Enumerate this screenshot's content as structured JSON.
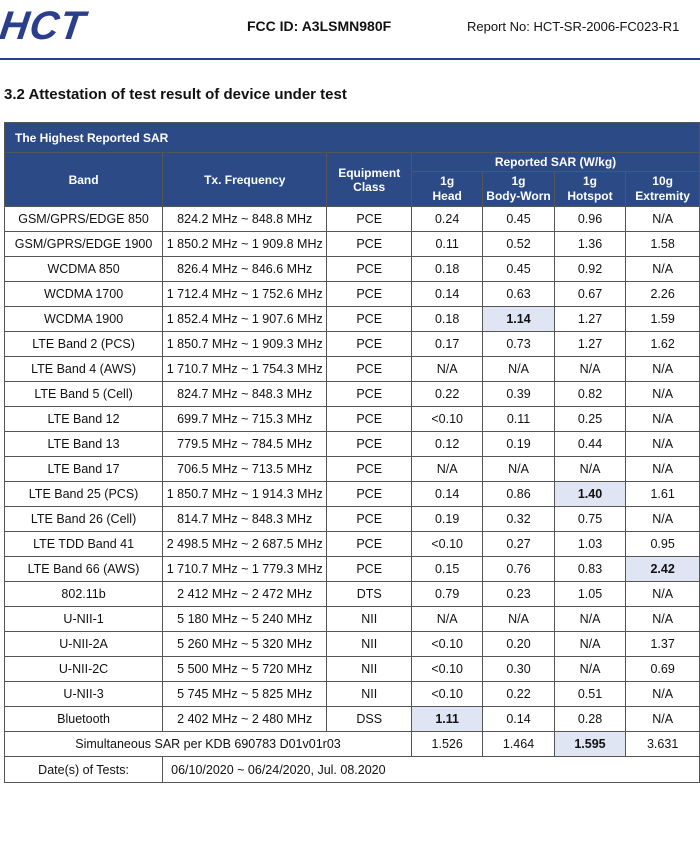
{
  "header": {
    "logo": "HCT",
    "fcc_id": "FCC ID: A3LSMN980F",
    "report_no": "Report No: HCT-SR-2006-FC023-R1"
  },
  "section_title": "3.2 Attestation of test result of device under test",
  "table": {
    "caption": "The Highest Reported SAR",
    "col_band": "Band",
    "col_freq": "Tx. Frequency",
    "col_equip": "Equipment Class",
    "col_reported": "Reported SAR (W/kg)",
    "sub_headers": [
      {
        "l1": "1g",
        "l2": "Head"
      },
      {
        "l1": "1g",
        "l2": "Body-Worn"
      },
      {
        "l1": "1g",
        "l2": "Hotspot"
      },
      {
        "l1": "10g",
        "l2": "Extremity"
      }
    ],
    "rows": [
      {
        "band": "GSM/GPRS/EDGE 850",
        "freq": "824.2 MHz ~ 848.8 MHz",
        "equip": "PCE",
        "head": "0.24",
        "body": "0.45",
        "hotspot": "0.96",
        "extremity": "N/A",
        "hl": ""
      },
      {
        "band": "GSM/GPRS/EDGE 1900",
        "freq": "1 850.2 MHz ~ 1 909.8 MHz",
        "equip": "PCE",
        "head": "0.11",
        "body": "0.52",
        "hotspot": "1.36",
        "extremity": "1.58",
        "hl": ""
      },
      {
        "band": "WCDMA 850",
        "freq": "826.4 MHz ~ 846.6 MHz",
        "equip": "PCE",
        "head": "0.18",
        "body": "0.45",
        "hotspot": "0.92",
        "extremity": "N/A",
        "hl": ""
      },
      {
        "band": "WCDMA 1700",
        "freq": "1 712.4 MHz ~ 1 752.6 MHz",
        "equip": "PCE",
        "head": "0.14",
        "body": "0.63",
        "hotspot": "0.67",
        "extremity": "2.26",
        "hl": ""
      },
      {
        "band": "WCDMA 1900",
        "freq": "1 852.4 MHz ~ 1 907.6 MHz",
        "equip": "PCE",
        "head": "0.18",
        "body": "1.14",
        "hotspot": "1.27",
        "extremity": "1.59",
        "hl": "body"
      },
      {
        "band": "LTE Band 2 (PCS)",
        "freq": "1 850.7 MHz ~ 1 909.3 MHz",
        "equip": "PCE",
        "head": "0.17",
        "body": "0.73",
        "hotspot": "1.27",
        "extremity": "1.62",
        "hl": ""
      },
      {
        "band": "LTE Band 4 (AWS)",
        "freq": "1 710.7 MHz ~ 1 754.3 MHz",
        "equip": "PCE",
        "head": "N/A",
        "body": "N/A",
        "hotspot": "N/A",
        "extremity": "N/A",
        "hl": ""
      },
      {
        "band": "LTE Band 5 (Cell)",
        "freq": "824.7 MHz ~ 848.3 MHz",
        "equip": "PCE",
        "head": "0.22",
        "body": "0.39",
        "hotspot": "0.82",
        "extremity": "N/A",
        "hl": ""
      },
      {
        "band": "LTE Band 12",
        "freq": "699.7 MHz ~ 715.3 MHz",
        "equip": "PCE",
        "head": "<0.10",
        "body": "0.11",
        "hotspot": "0.25",
        "extremity": "N/A",
        "hl": ""
      },
      {
        "band": "LTE Band 13",
        "freq": "779.5 MHz ~ 784.5 MHz",
        "equip": "PCE",
        "head": "0.12",
        "body": "0.19",
        "hotspot": "0.44",
        "extremity": "N/A",
        "hl": ""
      },
      {
        "band": "LTE Band 17",
        "freq": "706.5 MHz ~ 713.5 MHz",
        "equip": "PCE",
        "head": "N/A",
        "body": "N/A",
        "hotspot": "N/A",
        "extremity": "N/A",
        "hl": ""
      },
      {
        "band": "LTE Band 25 (PCS)",
        "freq": "1 850.7 MHz ~ 1 914.3 MHz",
        "equip": "PCE",
        "head": "0.14",
        "body": "0.86",
        "hotspot": "1.40",
        "extremity": "1.61",
        "hl": "hotspot"
      },
      {
        "band": "LTE Band 26 (Cell)",
        "freq": "814.7 MHz ~ 848.3 MHz",
        "equip": "PCE",
        "head": "0.19",
        "body": "0.32",
        "hotspot": "0.75",
        "extremity": "N/A",
        "hl": ""
      },
      {
        "band": "LTE TDD Band 41",
        "freq": "2 498.5 MHz ~ 2 687.5 MHz",
        "equip": "PCE",
        "head": "<0.10",
        "body": "0.27",
        "hotspot": "1.03",
        "extremity": "0.95",
        "hl": ""
      },
      {
        "band": "LTE Band 66 (AWS)",
        "freq": "1 710.7 MHz ~ 1 779.3 MHz",
        "equip": "PCE",
        "head": "0.15",
        "body": "0.76",
        "hotspot": "0.83",
        "extremity": "2.42",
        "hl": "extremity"
      },
      {
        "band": "802.11b",
        "freq": "2 412 MHz ~ 2 472 MHz",
        "equip": "DTS",
        "head": "0.79",
        "body": "0.23",
        "hotspot": "1.05",
        "extremity": "N/A",
        "hl": ""
      },
      {
        "band": "U-NII-1",
        "freq": "5 180 MHz ~ 5 240 MHz",
        "equip": "NII",
        "head": "N/A",
        "body": "N/A",
        "hotspot": "N/A",
        "extremity": "N/A",
        "hl": ""
      },
      {
        "band": "U-NII-2A",
        "freq": "5 260 MHz ~ 5 320 MHz",
        "equip": "NII",
        "head": "<0.10",
        "body": "0.20",
        "hotspot": "N/A",
        "extremity": "1.37",
        "hl": ""
      },
      {
        "band": "U-NII-2C",
        "freq": "5 500 MHz ~ 5 720 MHz",
        "equip": "NII",
        "head": "<0.10",
        "body": "0.30",
        "hotspot": "N/A",
        "extremity": "0.69",
        "hl": ""
      },
      {
        "band": "U-NII-3",
        "freq": "5 745 MHz ~ 5 825 MHz",
        "equip": "NII",
        "head": "<0.10",
        "body": "0.22",
        "hotspot": "0.51",
        "extremity": "N/A",
        "hl": ""
      },
      {
        "band": "Bluetooth",
        "freq": "2 402 MHz ~ 2 480 MHz",
        "equip": "DSS",
        "head": "1.11",
        "body": "0.14",
        "hotspot": "0.28",
        "extremity": "N/A",
        "hl": "head"
      }
    ],
    "simultaneous": {
      "label": "Simultaneous SAR per KDB 690783 D01v01r03",
      "head": "1.526",
      "body": "1.464",
      "hotspot": "1.595",
      "extremity": "3.631",
      "hl": "hotspot"
    },
    "dates_label": "Date(s) of Tests:",
    "dates_value": "06/10/2020 ~ 06/24/2020, Jul. 08.2020"
  }
}
